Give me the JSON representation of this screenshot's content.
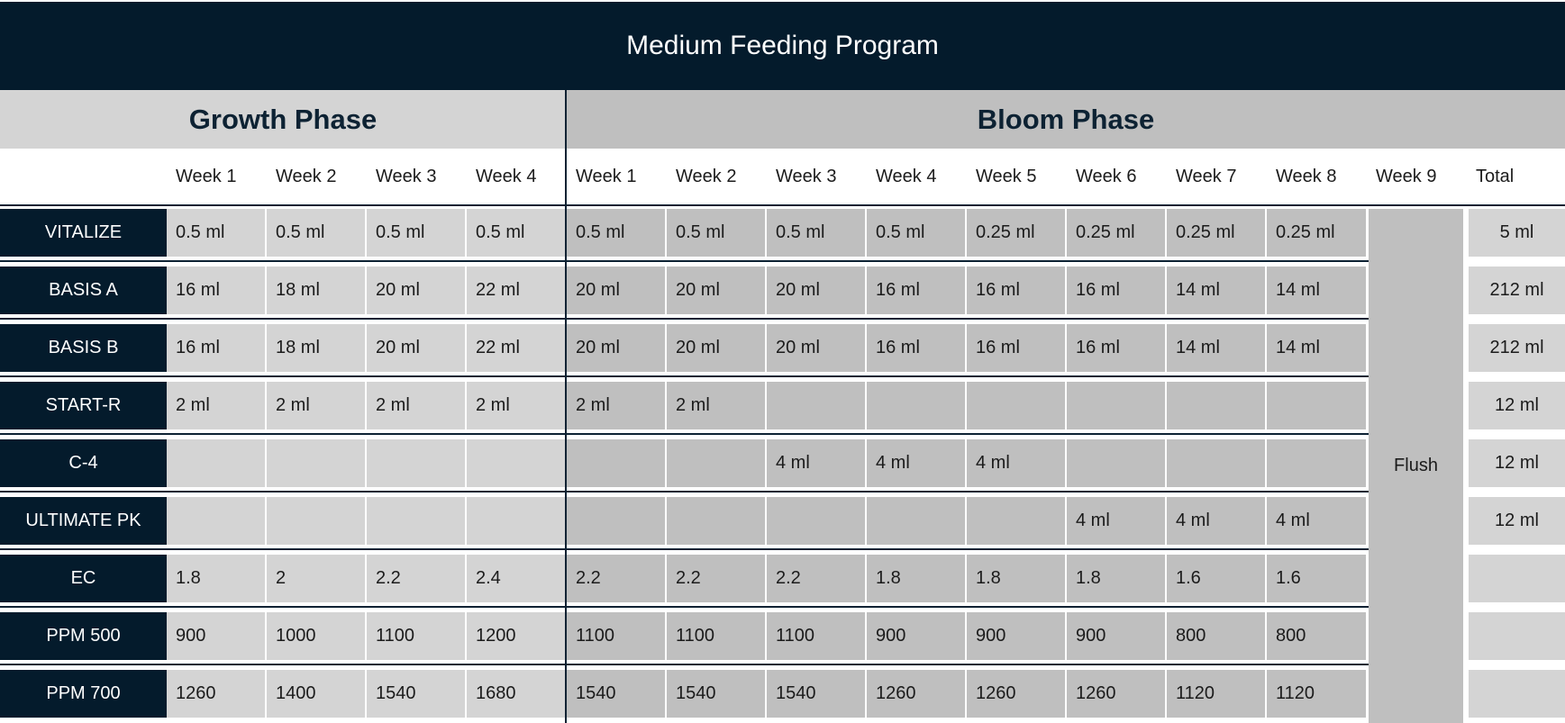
{
  "title": "Medium Feeding Program",
  "phases": {
    "growth": "Growth Phase",
    "bloom": "Bloom Phase"
  },
  "headers": [
    "Week 1",
    "Week 2",
    "Week 3",
    "Week 4",
    "Week 1",
    "Week 2",
    "Week 3",
    "Week 4",
    "Week 5",
    "Week 6",
    "Week 7",
    "Week 8",
    "Week 9",
    "Total"
  ],
  "flush": "Flush",
  "rows": [
    {
      "label": "VITALIZE",
      "values": [
        "0.5 ml",
        "0.5 ml",
        "0.5 ml",
        "0.5 ml",
        "0.5 ml",
        "0.5 ml",
        "0.5 ml",
        "0.5 ml",
        "0.25 ml",
        "0.25 ml",
        "0.25 ml",
        "0.25 ml"
      ],
      "total": "5 ml"
    },
    {
      "label": "BASIS A",
      "values": [
        "16 ml",
        "18 ml",
        "20 ml",
        "22 ml",
        "20 ml",
        "20 ml",
        "20 ml",
        "16 ml",
        "16 ml",
        "16 ml",
        "14 ml",
        "14 ml"
      ],
      "total": "212 ml"
    },
    {
      "label": "BASIS B",
      "values": [
        "16 ml",
        "18 ml",
        "20 ml",
        "22 ml",
        "20 ml",
        "20 ml",
        "20 ml",
        "16 ml",
        "16 ml",
        "16 ml",
        "14 ml",
        "14 ml"
      ],
      "total": "212 ml"
    },
    {
      "label": "START-R",
      "values": [
        "2 ml",
        "2 ml",
        "2 ml",
        "2 ml",
        "2 ml",
        "2 ml",
        "",
        "",
        "",
        "",
        "",
        ""
      ],
      "total": "12 ml"
    },
    {
      "label": "C-4",
      "values": [
        "",
        "",
        "",
        "",
        "",
        "",
        "4 ml",
        "4 ml",
        "4 ml",
        "",
        "",
        ""
      ],
      "total": "12 ml"
    },
    {
      "label": "ULTIMATE PK",
      "values": [
        "",
        "",
        "",
        "",
        "",
        "",
        "",
        "",
        "",
        "4 ml",
        "4 ml",
        "4 ml"
      ],
      "total": "12 ml"
    },
    {
      "label": "EC",
      "values": [
        "1.8",
        "2",
        "2.2",
        "2.4",
        "2.2",
        "2.2",
        "2.2",
        "1.8",
        "1.8",
        "1.8",
        "1.6",
        "1.6"
      ],
      "total": ""
    },
    {
      "label": "PPM 500",
      "values": [
        "900",
        "1000",
        "1100",
        "1200",
        "1100",
        "1100",
        "1100",
        "900",
        "900",
        "900",
        "800",
        "800"
      ],
      "total": ""
    },
    {
      "label": "PPM 700",
      "values": [
        "1260",
        "1400",
        "1540",
        "1680",
        "1540",
        "1540",
        "1540",
        "1260",
        "1260",
        "1260",
        "1120",
        "1120"
      ],
      "total": ""
    }
  ]
}
